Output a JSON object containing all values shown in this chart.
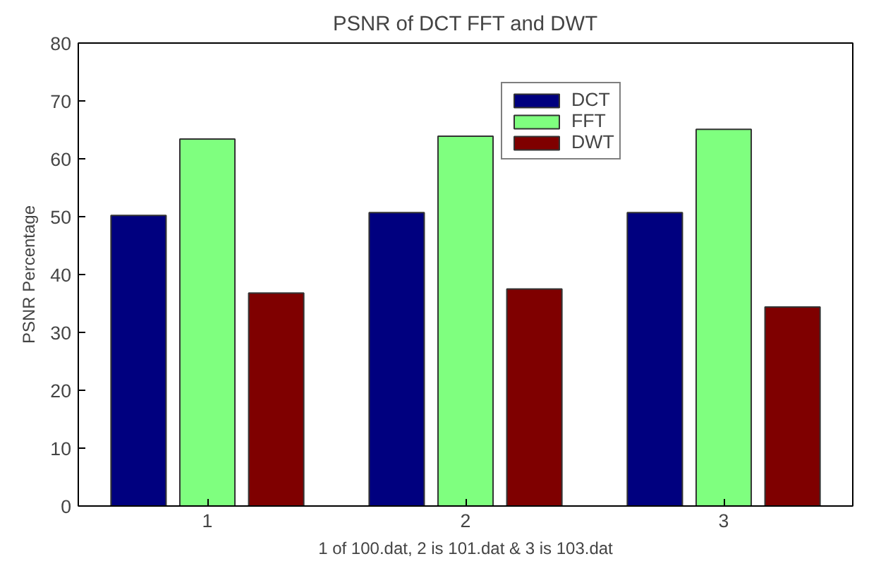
{
  "chart_data": {
    "type": "bar",
    "title": "PSNR of DCT FFT and DWT",
    "xlabel": "1 of 100.dat, 2 is 101.dat & 3 is 103.dat",
    "ylabel": "PSNR Percentage",
    "categories": [
      "1",
      "2",
      "3"
    ],
    "series": [
      {
        "name": "DCT",
        "color": "#00007f",
        "values": [
          50.2,
          50.7,
          50.7
        ]
      },
      {
        "name": "FFT",
        "color": "#7fff7f",
        "values": [
          63.4,
          63.9,
          65.1
        ]
      },
      {
        "name": "DWT",
        "color": "#7f0000",
        "values": [
          36.8,
          37.5,
          34.4
        ]
      }
    ],
    "ylim": [
      0,
      80
    ],
    "yticks": [
      0,
      10,
      20,
      30,
      40,
      50,
      60,
      70,
      80
    ],
    "grid": false,
    "legend": "top right"
  }
}
